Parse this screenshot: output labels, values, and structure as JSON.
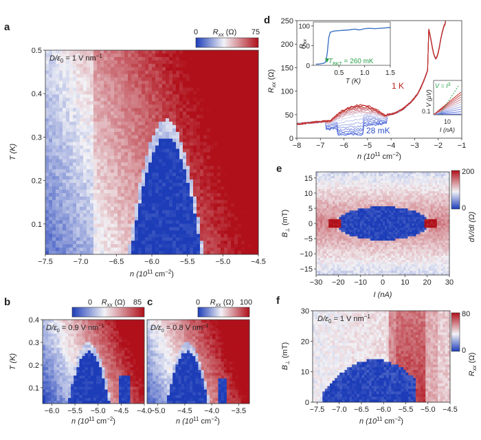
{
  "figure": {
    "colors": {
      "blue": "#1f3fbf",
      "white": "#f4f4f8",
      "red": "#b2101c",
      "trace_blue": "#3d5fd6",
      "trace_red": "#c42b26",
      "inset_line": "#3d72c4",
      "green": "#2aa04a"
    }
  },
  "chart_data": [
    {
      "panel": "a",
      "type": "heatmap",
      "label": "a",
      "xlabel": "n (10",
      "xlabel_sup": "11",
      "xlabel_tail": " cm",
      "xlabel_sup2": "−2",
      "xlabel_close": ")",
      "ylabel": "T (K)",
      "xlim": [
        -7.5,
        -4.5
      ],
      "ylim": [
        0.03,
        0.5
      ],
      "xticks": [
        "-7.5",
        "-7.0",
        "-6.5",
        "-6.0",
        "-5.5",
        "-5.0",
        "-4.5"
      ],
      "yticks": [
        "0.1",
        "0.2",
        "0.3",
        "0.4",
        "0.5"
      ],
      "annotation": "D/ε",
      "annotation_sub": "0",
      "annotation_tail": " = 1 V nm",
      "annotation_sup": "−1",
      "colorbar": {
        "label": "R",
        "label_sub": "xx",
        "label_tail": " (Ω)",
        "min": "0",
        "max": "75"
      }
    },
    {
      "panel": "b",
      "type": "heatmap",
      "label": "b",
      "ylabel": "T (K)",
      "xlim": [
        -6.2,
        -4.0
      ],
      "ylim": [
        0.03,
        0.4
      ],
      "xticks": [
        "-6.0",
        "-5.5",
        "-5.0",
        "-4.5",
        "-4.0"
      ],
      "yticks": [
        "0.1",
        "0.2",
        "0.3",
        "0.4"
      ],
      "annotation": "D/ε",
      "annotation_sub": "0",
      "annotation_tail": " = 0.9 V nm",
      "annotation_sup": "−1",
      "colorbar": {
        "label": "R",
        "label_sub": "xx",
        "label_tail": " (Ω)",
        "min": "0",
        "max": "85"
      }
    },
    {
      "panel": "c",
      "type": "heatmap",
      "label": "c",
      "xlim": [
        -5.2,
        -3.3
      ],
      "ylim": [
        0.03,
        0.4
      ],
      "xticks": [
        "-5.0",
        "-4.5",
        "-4.0",
        "-3.5"
      ],
      "annotation": "D/ε",
      "annotation_sub": "0",
      "annotation_tail": " = 0.8 V nm",
      "annotation_sup": "−1",
      "colorbar": {
        "label": "R",
        "label_sub": "xx",
        "label_tail": " (Ω)",
        "min": "0",
        "max": "100"
      }
    },
    {
      "panel": "d",
      "type": "line",
      "label": "d",
      "ylabel": "R",
      "ylabel_sub": "xx",
      "ylabel_tail": " (Ω)",
      "xlim": [
        -8,
        -1
      ],
      "ylim": [
        0,
        250
      ],
      "xticks": [
        "-8",
        "-7",
        "-6",
        "-5",
        "-4",
        "-3",
        "-2",
        "-1"
      ],
      "yticks": [
        "0",
        "50",
        "100",
        "150",
        "200",
        "250"
      ],
      "label_hot": "1 K",
      "label_cold": "28 mK",
      "inset_rt": {
        "ylabel": "R",
        "ylabel_sub": "xx",
        "xlabel": "T (K)",
        "xticks": [
          "0.5",
          "1.0",
          "1.5"
        ],
        "yticks": [
          "0",
          "50",
          "100"
        ],
        "xlim": [
          0,
          1.5
        ],
        "ylim": [
          0,
          110
        ],
        "annotation": "T",
        "annotation_sub": "BKT",
        "annotation_tail": " = 260 mK",
        "x": [
          0.05,
          0.1,
          0.15,
          0.2,
          0.24,
          0.27,
          0.3,
          0.33,
          0.4,
          0.5,
          0.6,
          0.7,
          0.8,
          0.9,
          1.0,
          1.1,
          1.2,
          1.3,
          1.4,
          1.5
        ],
        "values": [
          3,
          3,
          4,
          5,
          8,
          30,
          70,
          84,
          87,
          88,
          89,
          90,
          92,
          90,
          93,
          94,
          93,
          94,
          95,
          96
        ]
      },
      "inset_iv": {
        "ylabel": "V (μV)",
        "xlabel": "I (nA)",
        "xtick": "10",
        "ytick": "0.1",
        "annotation": "V = I",
        "annotation_sup": "3"
      }
    },
    {
      "panel": "e",
      "type": "heatmap",
      "label": "e",
      "xlabel": "I (nA)",
      "ylabel": "B",
      "ylabel_sub": "⊥",
      "ylabel_tail": " (mT)",
      "xlim": [
        -30,
        30
      ],
      "ylim": [
        -17,
        17
      ],
      "xticks": [
        "-30",
        "-20",
        "-10",
        "0",
        "10",
        "20",
        "30"
      ],
      "yticks": [
        "-15",
        "-10",
        "-5",
        "0",
        "5",
        "10",
        "15"
      ],
      "colorbar": {
        "label": "dV/dI (Ω)",
        "min": "0",
        "max": "200"
      }
    },
    {
      "panel": "f",
      "type": "heatmap",
      "label": "f",
      "xlabel": "n (10",
      "xlabel_sup": "11",
      "xlabel_tail": " cm",
      "xlabel_sup2": "−2",
      "xlabel_close": ")",
      "ylabel": "B",
      "ylabel_sub": "⊥",
      "ylabel_tail": " (mT)",
      "xlim": [
        -7.6,
        -4.5
      ],
      "ylim": [
        0,
        30
      ],
      "xticks": [
        "-7.5",
        "-7.0",
        "-6.5",
        "-6.0",
        "-5.5",
        "-5.0",
        "-4.5"
      ],
      "yticks": [
        "0",
        "10",
        "20",
        "30"
      ],
      "annotation": "D/ε",
      "annotation_sub": "0",
      "annotation_tail": " = 1 V nm",
      "annotation_sup": "−1",
      "colorbar": {
        "label": "R",
        "label_sub": "xx",
        "label_tail": " (Ω)",
        "min": "0",
        "max": "80"
      }
    }
  ]
}
